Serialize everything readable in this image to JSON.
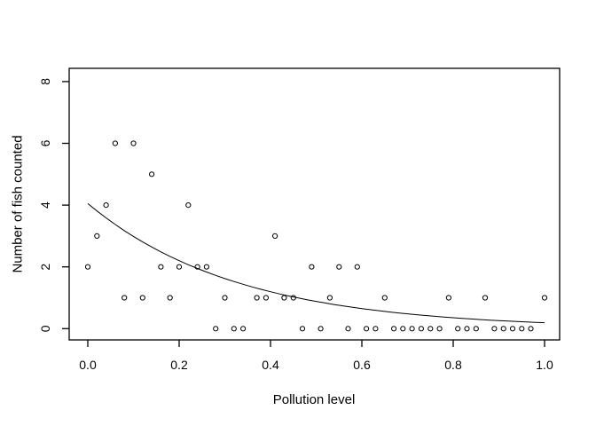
{
  "chart_data": {
    "type": "scatter",
    "title": "",
    "xlabel": "Pollution level",
    "ylabel": "Number of fish counted",
    "x_ticks": [
      0.0,
      0.2,
      0.4,
      0.6,
      0.8,
      1.0
    ],
    "x_tick_labels": [
      "0.0",
      "0.2",
      "0.4",
      "0.6",
      "0.8",
      "1.0"
    ],
    "y_ticks": [
      0,
      2,
      4,
      6,
      8
    ],
    "y_tick_labels": [
      "0",
      "2",
      "4",
      "6",
      "8"
    ],
    "xlim": [
      -0.04,
      1.04
    ],
    "ylim": [
      -0.35,
      8.4
    ],
    "grid": false,
    "legend": "none",
    "marker": "open-circle",
    "colors": {
      "foreground": "#000000",
      "background": "#ffffff"
    },
    "points": [
      [
        0.06,
        6
      ],
      [
        0.1,
        6
      ],
      [
        0.14,
        5
      ],
      [
        0.04,
        4
      ],
      [
        0.22,
        4
      ],
      [
        0.02,
        3
      ],
      [
        0.41,
        3
      ],
      [
        0.0,
        2
      ],
      [
        0.16,
        2
      ],
      [
        0.2,
        2
      ],
      [
        0.24,
        2
      ],
      [
        0.26,
        2
      ],
      [
        0.49,
        2
      ],
      [
        0.55,
        2
      ],
      [
        0.59,
        2
      ],
      [
        0.08,
        1
      ],
      [
        0.12,
        1
      ],
      [
        0.18,
        1
      ],
      [
        0.3,
        1
      ],
      [
        0.37,
        1
      ],
      [
        0.39,
        1
      ],
      [
        0.43,
        1
      ],
      [
        0.45,
        1
      ],
      [
        0.53,
        1
      ],
      [
        0.65,
        1
      ],
      [
        0.79,
        1
      ],
      [
        0.87,
        1
      ],
      [
        1.0,
        1
      ],
      [
        0.28,
        0
      ],
      [
        0.32,
        0
      ],
      [
        0.34,
        0
      ],
      [
        0.47,
        0
      ],
      [
        0.51,
        0
      ],
      [
        0.57,
        0
      ],
      [
        0.61,
        0
      ],
      [
        0.63,
        0
      ],
      [
        0.67,
        0
      ],
      [
        0.69,
        0
      ],
      [
        0.71,
        0
      ],
      [
        0.73,
        0
      ],
      [
        0.75,
        0
      ],
      [
        0.77,
        0
      ],
      [
        0.81,
        0
      ],
      [
        0.83,
        0
      ],
      [
        0.85,
        0
      ],
      [
        0.89,
        0
      ],
      [
        0.91,
        0
      ],
      [
        0.93,
        0
      ],
      [
        0.95,
        0
      ],
      [
        0.97,
        0
      ]
    ],
    "curve": {
      "type": "exponential_decay",
      "formula": "y = 4.05 * exp(-3.05 * x)",
      "a": 4.05,
      "k": 3.05,
      "x_start": 0.0,
      "x_end": 1.0
    }
  }
}
